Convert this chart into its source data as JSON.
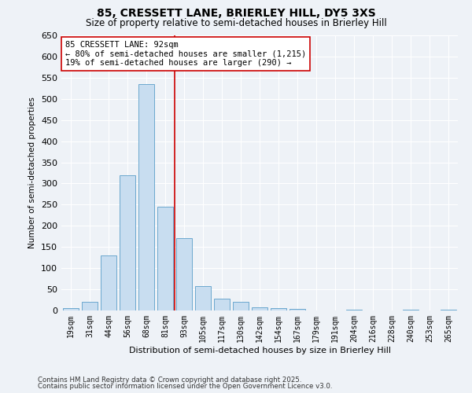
{
  "title": "85, CRESSETT LANE, BRIERLEY HILL, DY5 3XS",
  "subtitle": "Size of property relative to semi-detached houses in Brierley Hill",
  "xlabel": "Distribution of semi-detached houses by size in Brierley Hill",
  "ylabel": "Number of semi-detached properties",
  "bar_labels": [
    "19sqm",
    "31sqm",
    "44sqm",
    "56sqm",
    "68sqm",
    "81sqm",
    "93sqm",
    "105sqm",
    "117sqm",
    "130sqm",
    "142sqm",
    "154sqm",
    "167sqm",
    "179sqm",
    "191sqm",
    "204sqm",
    "216sqm",
    "228sqm",
    "240sqm",
    "253sqm",
    "265sqm"
  ],
  "bar_values": [
    5,
    20,
    130,
    320,
    535,
    245,
    170,
    57,
    28,
    20,
    8,
    5,
    4,
    0,
    0,
    2,
    0,
    0,
    1,
    0,
    1
  ],
  "bar_color": "#c8ddf0",
  "bar_edge_color": "#5a9dc8",
  "vline_index": 6,
  "property_line_label": "85 CRESSETT LANE: 92sqm",
  "annotation_line1": "← 80% of semi-detached houses are smaller (1,215)",
  "annotation_line2": "19% of semi-detached houses are larger (290) →",
  "vline_color": "#cc0000",
  "ylim": [
    0,
    650
  ],
  "yticks": [
    0,
    50,
    100,
    150,
    200,
    250,
    300,
    350,
    400,
    450,
    500,
    550,
    600,
    650
  ],
  "footnote1": "Contains HM Land Registry data © Crown copyright and database right 2025.",
  "footnote2": "Contains public sector information licensed under the Open Government Licence v3.0.",
  "bg_color": "#eef2f7",
  "plot_bg_color": "#eef2f7"
}
